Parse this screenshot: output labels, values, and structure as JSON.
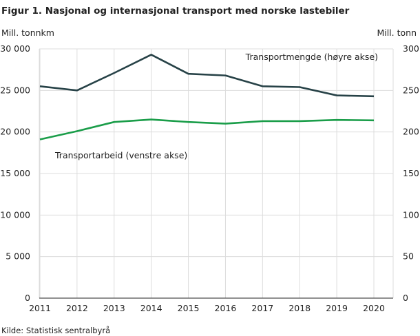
{
  "chart_data": {
    "type": "line",
    "title": "Figur 1.  Nasjonal og internasjonal transport med norske lastebiler",
    "ylabel_left": "Mill. tonnkm",
    "ylabel_right": "Mill. tonn",
    "source": "Kilde: Statistisk sentralbyrå",
    "x": [
      2011,
      2012,
      2013,
      2014,
      2015,
      2016,
      2017,
      2018,
      2019,
      2020
    ],
    "ylim_left": [
      0,
      30000
    ],
    "ylim_right": [
      0,
      300
    ],
    "left_ticks": [
      "0",
      "5 000",
      "10 000",
      "15 000",
      "20 000",
      "25 000",
      "30 000"
    ],
    "right_ticks": [
      "0",
      "50",
      "100",
      "150",
      "200",
      "250",
      "300"
    ],
    "grid": true,
    "series": [
      {
        "name": "Transportarbeid (venstre akse)",
        "axis": "left",
        "color": "#1a9d49",
        "values": [
          19100,
          20100,
          21200,
          21500,
          21200,
          21000,
          21300,
          21300,
          21450,
          21400
        ]
      },
      {
        "name": "Transportmengde (høyre akse)",
        "axis": "right",
        "color": "#274247",
        "values": [
          255,
          250,
          271,
          293,
          270,
          268,
          255,
          254,
          244,
          243
        ]
      }
    ]
  }
}
